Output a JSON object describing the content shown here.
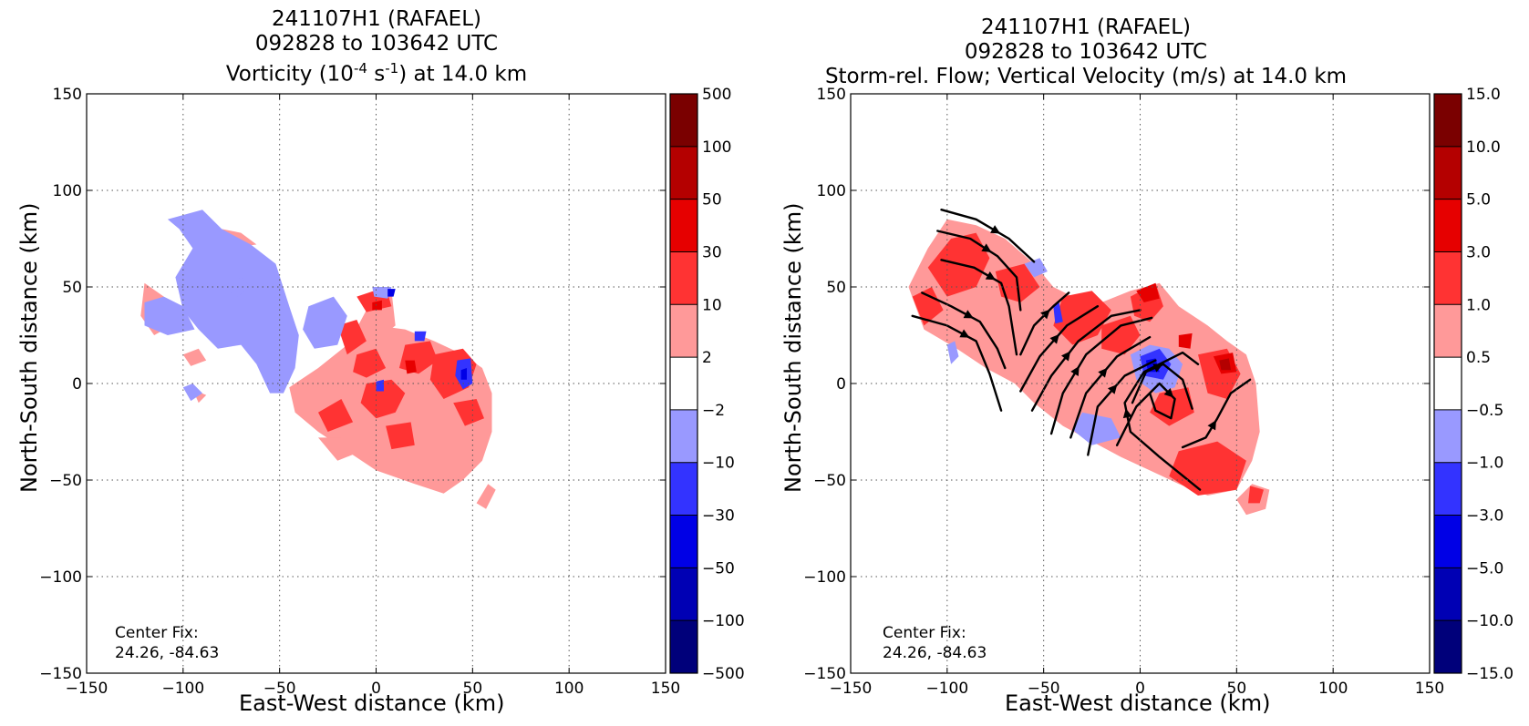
{
  "chart_data": [
    {
      "type": "heatmap",
      "title_line1": "241107H1 (RAFAEL)",
      "title_line2": "092828 to 103642 UTC",
      "title_line3_pre": "Vorticity (10",
      "title_line3_sup1": "-4",
      "title_line3_mid": " s",
      "title_line3_sup2": "-1",
      "title_line3_post": ") at 14.0 km",
      "xlabel": "East-West distance (km)",
      "ylabel": "North-South distance (km)",
      "xlim": [
        -150,
        150
      ],
      "ylim": [
        -150,
        150
      ],
      "x_ticks": [
        "−150",
        "−100",
        "−50",
        "0",
        "50",
        "100",
        "150"
      ],
      "y_ticks": [
        "150",
        "100",
        "50",
        "0",
        "−50",
        "−100",
        "−150"
      ],
      "grid": true,
      "colorbar_levels": [
        "500",
        "100",
        "50",
        "30",
        "10",
        "2",
        "−2",
        "−10",
        "−30",
        "−50",
        "−100",
        "−500"
      ],
      "colorbar_colors": [
        "#7a0000",
        "#b40000",
        "#e60000",
        "#ff3333",
        "#ff9999",
        "#ffffff",
        "#9999ff",
        "#3333ff",
        "#0000e6",
        "#0000b4",
        "#00007a"
      ],
      "center_fix_label": "Center Fix:",
      "center_fix_value": "24.26, -84.63"
    },
    {
      "type": "heatmap",
      "title_line1": "241107H1 (RAFAEL)",
      "title_line2": "092828 to 103642 UTC",
      "title_line3": "Storm-rel. Flow; Vertical Velocity (m/s) at 14.0 km",
      "xlabel": "East-West distance (km)",
      "ylabel": "North-South distance (km)",
      "xlim": [
        -150,
        150
      ],
      "ylim": [
        -150,
        150
      ],
      "x_ticks": [
        "−150",
        "−100",
        "−50",
        "0",
        "50",
        "100",
        "150"
      ],
      "y_ticks": [
        "150",
        "100",
        "50",
        "0",
        "−50",
        "−100",
        "−150"
      ],
      "grid": true,
      "colorbar_levels": [
        "15.0",
        "10.0",
        "5.0",
        "3.0",
        "1.0",
        "0.5",
        "−0.5",
        "−1.0",
        "−3.0",
        "−5.0",
        "−10.0",
        "−15.0"
      ],
      "colorbar_colors": [
        "#7a0000",
        "#b40000",
        "#e60000",
        "#ff3333",
        "#ff9999",
        "#ffffff",
        "#9999ff",
        "#3333ff",
        "#0000e6",
        "#0000b4",
        "#00007a"
      ],
      "center_fix_label": "Center Fix:",
      "center_fix_value": "24.26, -84.63"
    }
  ]
}
